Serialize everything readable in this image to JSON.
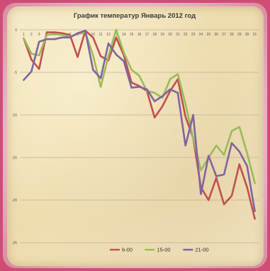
{
  "chart_data": {
    "type": "line",
    "title": "График температур Январь 2012 год",
    "xlabel": "",
    "ylabel": "",
    "x": [
      1,
      2,
      3,
      4,
      5,
      6,
      7,
      8,
      9,
      10,
      11,
      12,
      13,
      14,
      15,
      16,
      17,
      18,
      19,
      20,
      21,
      22,
      23,
      24,
      25,
      26,
      27,
      28,
      29,
      30,
      31
    ],
    "ylim": [
      -25,
      0
    ],
    "yticks": [
      0,
      -5,
      -10,
      -15,
      -20,
      -25
    ],
    "grid": true,
    "legend_position": "bottom",
    "series": [
      {
        "name": "6-00",
        "color": "#c0504d",
        "values": [
          -1,
          -3.5,
          -4.6,
          -0.3,
          -0.3,
          -0.4,
          -0.6,
          -3.2,
          -0.1,
          -0.9,
          -3.1,
          -3.6,
          -0.9,
          -3,
          -6.2,
          -6.6,
          -7.2,
          -10.3,
          -9,
          -7.2,
          -5.8,
          -10.2,
          -12.7,
          -18.5,
          -20,
          -17.4,
          -20.5,
          -19.5,
          -15.8,
          -18.5,
          -22.2
        ]
      },
      {
        "name": "15-00",
        "color": "#9bbb59",
        "values": [
          -1,
          -2.8,
          -3,
          -0.6,
          -0.5,
          -0.6,
          -0.8,
          -0.5,
          -0.3,
          -3,
          -6.7,
          -3.1,
          0,
          -2.7,
          -4.7,
          -5.4,
          -7.2,
          -7.4,
          -8,
          -5.8,
          -5.2,
          -8.7,
          -12.7,
          -16.5,
          -15,
          -13.6,
          -14.7,
          -11.9,
          -11.4,
          -14.5,
          -18
        ]
      },
      {
        "name": "21-00",
        "color": "#8064a2",
        "values": [
          -5.9,
          -4.9,
          -1.4,
          -1.1,
          -1.1,
          -0.9,
          -0.9,
          -0.4,
          -0.1,
          -4.7,
          -5.7,
          -1.6,
          -2.9,
          -3.7,
          -6.8,
          -6.7,
          -7,
          -8.4,
          -7.8,
          -7,
          -7.4,
          -13.6,
          -10,
          -19.3,
          -14.8,
          -17.2,
          -17,
          -13.3,
          -14.3,
          -16,
          -21.3
        ]
      }
    ]
  }
}
